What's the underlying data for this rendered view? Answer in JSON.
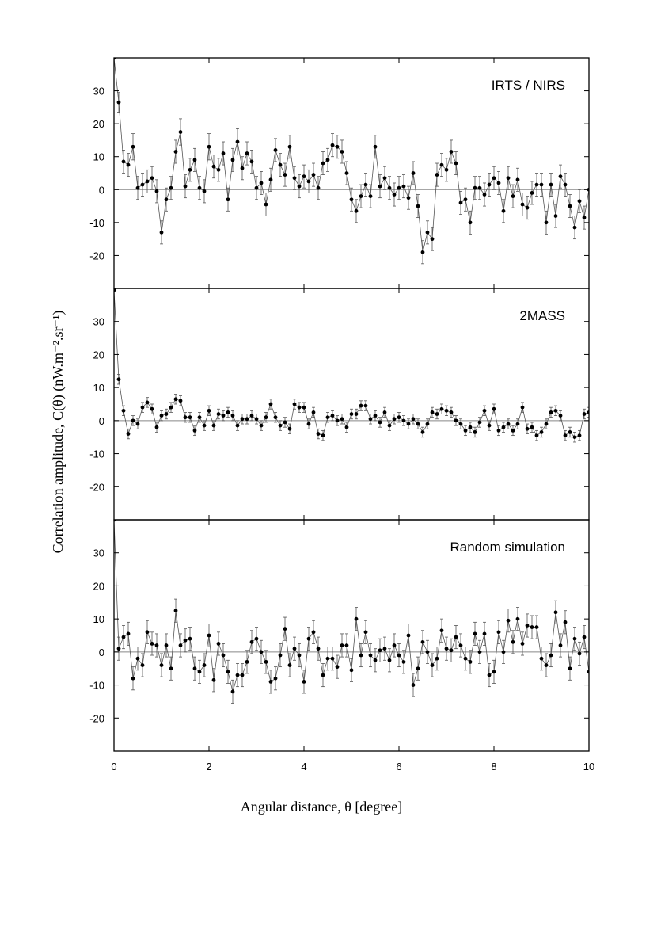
{
  "figure": {
    "ylabel": "Correlation amplitude, C(θ)  (nW.m⁻².sr⁻¹)",
    "xlabel": "Angular distance, θ  [degree]"
  },
  "chart_data": [
    {
      "type": "line",
      "title": "IRTS / NIRS",
      "xlim": [
        0,
        10
      ],
      "ylim": [
        -30,
        40
      ],
      "x_ticks": [
        0,
        2,
        4,
        6,
        8,
        10
      ],
      "y_ticks": [
        -20,
        -10,
        0,
        10,
        20,
        30
      ],
      "error_bars": true,
      "zero_line": true,
      "series": [
        {
          "x": [
            0,
            0.1,
            0.2,
            0.3,
            0.4,
            0.5,
            0.6,
            0.7,
            0.8,
            0.9,
            1.0,
            1.1,
            1.2,
            1.3,
            1.4,
            1.5,
            1.6,
            1.7,
            1.8,
            1.9,
            2.0,
            2.1,
            2.2,
            2.3,
            2.4,
            2.5,
            2.6,
            2.7,
            2.8,
            2.9,
            3.0,
            3.1,
            3.2,
            3.3,
            3.4,
            3.5,
            3.6,
            3.7,
            3.8,
            3.9,
            4.0,
            4.1,
            4.2,
            4.3,
            4.4,
            4.5,
            4.6,
            4.7,
            4.8,
            4.9,
            5.0,
            5.1,
            5.2,
            5.3,
            5.4,
            5.5,
            5.6,
            5.7,
            5.8,
            5.9,
            6.0,
            6.1,
            6.2,
            6.3,
            6.4,
            6.5,
            6.6,
            6.7,
            6.8,
            6.9,
            7.0,
            7.1,
            7.2,
            7.3,
            7.4,
            7.5,
            7.6,
            7.7,
            7.8,
            7.9,
            8.0,
            8.1,
            8.2,
            8.3,
            8.4,
            8.5,
            8.6,
            8.7,
            8.8,
            8.9,
            9.0,
            9.1,
            9.2,
            9.3,
            9.4,
            9.5,
            9.6,
            9.7,
            9.8,
            9.9,
            10.0
          ],
          "y": [
            40,
            26.5,
            8.5,
            7.5,
            13,
            0.5,
            1.5,
            2.5,
            3.5,
            -0.5,
            -13,
            -3,
            0.5,
            11.5,
            17.5,
            1,
            6,
            9,
            0.5,
            -0.5,
            13,
            7,
            6,
            11,
            -3,
            9,
            14.5,
            6.5,
            11,
            8.5,
            0.5,
            2,
            -4.5,
            3,
            12,
            7.5,
            4.5,
            13,
            3.5,
            1,
            4,
            2.5,
            4.5,
            0.5,
            8,
            9,
            13.5,
            13,
            11.5,
            5,
            -3,
            -6.5,
            -2,
            1.5,
            -2,
            13,
            1,
            3.5,
            0.5,
            -1.5,
            0.5,
            1,
            -2.5,
            5,
            -5,
            -19,
            -13,
            -15,
            4.5,
            7.5,
            6,
            11.5,
            8,
            -4,
            -3,
            -10,
            0.5,
            0.5,
            -1.5,
            1.5,
            3.5,
            2,
            -6.5,
            3.5,
            -2,
            3,
            -4.5,
            -5.5,
            -1,
            1.5,
            1.5,
            -10,
            1.5,
            -8,
            4,
            1.5,
            -5,
            -11.5,
            -3.5,
            -8.5,
            0
          ],
          "err": [
            0,
            3,
            3.5,
            3.5,
            4,
            3.5,
            3.5,
            3.5,
            3.5,
            3.5,
            3.5,
            3.5,
            3.5,
            3.5,
            4,
            3.5,
            3.5,
            3.5,
            3.5,
            3.5,
            4,
            3.5,
            3.5,
            3.5,
            3.5,
            3.5,
            4,
            3.5,
            3.5,
            3.5,
            3.5,
            3.5,
            3.5,
            3.5,
            3.5,
            3.5,
            3.5,
            3.5,
            3.5,
            3.5,
            3.5,
            3.5,
            3.5,
            3.5,
            3.5,
            3.5,
            3.5,
            3.5,
            3.5,
            3.5,
            3.5,
            3.5,
            3.5,
            3.5,
            3.5,
            3.5,
            3.5,
            3.5,
            3.5,
            3.5,
            3.5,
            3.5,
            3.5,
            3.5,
            3.5,
            3.5,
            3.5,
            3.5,
            3.5,
            3.5,
            3.5,
            3.5,
            3.5,
            3.5,
            3.5,
            3.5,
            3.5,
            3.5,
            3.5,
            3.5,
            3.5,
            3.5,
            3.5,
            3.5,
            3.5,
            3.5,
            3.5,
            3.5,
            3.5,
            3.5,
            3.5,
            3.5,
            3.5,
            3.5,
            3.5,
            3.5,
            3.5,
            3.5,
            3.5,
            3.5,
            0
          ]
        }
      ]
    },
    {
      "type": "line",
      "title": "2MASS",
      "xlim": [
        0,
        10
      ],
      "ylim": [
        -30,
        40
      ],
      "x_ticks": [
        0,
        2,
        4,
        6,
        8,
        10
      ],
      "y_ticks": [
        -20,
        -10,
        0,
        10,
        20,
        30
      ],
      "error_bars": true,
      "zero_line": true,
      "series": [
        {
          "x": [
            0,
            0.1,
            0.2,
            0.3,
            0.4,
            0.5,
            0.6,
            0.7,
            0.8,
            0.9,
            1.0,
            1.1,
            1.2,
            1.3,
            1.4,
            1.5,
            1.6,
            1.7,
            1.8,
            1.9,
            2.0,
            2.1,
            2.2,
            2.3,
            2.4,
            2.5,
            2.6,
            2.7,
            2.8,
            2.9,
            3.0,
            3.1,
            3.2,
            3.3,
            3.4,
            3.5,
            3.6,
            3.7,
            3.8,
            3.9,
            4.0,
            4.1,
            4.2,
            4.3,
            4.4,
            4.5,
            4.6,
            4.7,
            4.8,
            4.9,
            5.0,
            5.1,
            5.2,
            5.3,
            5.4,
            5.5,
            5.6,
            5.7,
            5.8,
            5.9,
            6.0,
            6.1,
            6.2,
            6.3,
            6.4,
            6.5,
            6.6,
            6.7,
            6.8,
            6.9,
            7.0,
            7.1,
            7.2,
            7.3,
            7.4,
            7.5,
            7.6,
            7.7,
            7.8,
            7.9,
            8.0,
            8.1,
            8.2,
            8.3,
            8.4,
            8.5,
            8.6,
            8.7,
            8.8,
            8.9,
            9.0,
            9.1,
            9.2,
            9.3,
            9.4,
            9.5,
            9.6,
            9.7,
            9.8,
            9.9,
            10.0
          ],
          "y": [
            39.5,
            12.5,
            3,
            -4,
            0,
            -1,
            4,
            5.5,
            3.5,
            -2,
            1.5,
            2,
            4,
            6.5,
            6,
            1,
            1,
            -3,
            1,
            -1.5,
            3,
            -1.5,
            2,
            1.5,
            2.5,
            1.5,
            -1.5,
            0.5,
            0.5,
            1.5,
            0.5,
            -1.5,
            1,
            5,
            1,
            -1.5,
            -0.5,
            -2.5,
            5,
            4,
            4,
            -1,
            2.5,
            -4,
            -4.5,
            1,
            1.5,
            0,
            0.5,
            -2,
            2,
            2,
            4.5,
            4.5,
            0.5,
            1.5,
            -0.5,
            2.5,
            -1.5,
            0.5,
            1,
            0,
            -1,
            0.5,
            -1,
            -3.5,
            -1,
            2.5,
            2,
            3.5,
            3,
            2.5,
            0,
            -1,
            -3,
            -2,
            -3.5,
            -0.5,
            3,
            -1.5,
            3.5,
            -3,
            -2,
            -1,
            -3,
            -1,
            4,
            -2.5,
            -2,
            -4.5,
            -3.5,
            -1,
            2.5,
            3,
            1.5,
            -4.5,
            -3.5,
            -5,
            -4.5,
            2,
            2.5
          ],
          "err": [
            0,
            1.5,
            1.5,
            1.5,
            1.5,
            1.5,
            1.5,
            1.5,
            1.5,
            1.5,
            1.5,
            1.5,
            1.5,
            1.5,
            1.5,
            1.5,
            1.5,
            1.5,
            1.5,
            1.5,
            1.5,
            1.5,
            1.5,
            1.5,
            1.5,
            1.5,
            1.5,
            1.5,
            1.5,
            1.5,
            1.5,
            1.5,
            1.5,
            1.5,
            1.5,
            1.5,
            1.5,
            1.5,
            1.5,
            1.5,
            1.5,
            1.5,
            1.5,
            1.5,
            1.5,
            1.5,
            1.5,
            1.5,
            1.5,
            1.5,
            1.5,
            1.5,
            1.5,
            1.5,
            1.5,
            1.5,
            1.5,
            1.5,
            1.5,
            1.5,
            1.5,
            1.5,
            1.5,
            1.5,
            1.5,
            1.5,
            1.5,
            1.5,
            1.5,
            1.5,
            1.5,
            1.5,
            1.5,
            1.5,
            1.5,
            1.5,
            1.5,
            1.5,
            1.5,
            1.5,
            1.5,
            1.5,
            1.5,
            1.5,
            1.5,
            1.5,
            1.5,
            1.5,
            1.5,
            1.5,
            1.5,
            1.5,
            1.5,
            1.5,
            1.5,
            1.5,
            1.5,
            1.5,
            1.5,
            1.5,
            1.5
          ]
        }
      ]
    },
    {
      "type": "line",
      "title": "Random simulation",
      "xlim": [
        0,
        10
      ],
      "ylim": [
        -30,
        40
      ],
      "x_ticks": [
        0,
        2,
        4,
        6,
        8,
        10
      ],
      "y_ticks": [
        -20,
        -10,
        0,
        10,
        20,
        30
      ],
      "error_bars": true,
      "zero_line": true,
      "series": [
        {
          "x": [
            0,
            0.1,
            0.2,
            0.3,
            0.4,
            0.5,
            0.6,
            0.7,
            0.8,
            0.9,
            1.0,
            1.1,
            1.2,
            1.3,
            1.4,
            1.5,
            1.6,
            1.7,
            1.8,
            1.9,
            2.0,
            2.1,
            2.2,
            2.3,
            2.4,
            2.5,
            2.6,
            2.7,
            2.8,
            2.9,
            3.0,
            3.1,
            3.2,
            3.3,
            3.4,
            3.5,
            3.6,
            3.7,
            3.8,
            3.9,
            4.0,
            4.1,
            4.2,
            4.3,
            4.4,
            4.5,
            4.6,
            4.7,
            4.8,
            4.9,
            5.0,
            5.1,
            5.2,
            5.3,
            5.4,
            5.5,
            5.6,
            5.7,
            5.8,
            5.9,
            6.0,
            6.1,
            6.2,
            6.3,
            6.4,
            6.5,
            6.6,
            6.7,
            6.8,
            6.9,
            7.0,
            7.1,
            7.2,
            7.3,
            7.4,
            7.5,
            7.6,
            7.7,
            7.8,
            7.9,
            8.0,
            8.1,
            8.2,
            8.3,
            8.4,
            8.5,
            8.6,
            8.7,
            8.8,
            8.9,
            9.0,
            9.1,
            9.2,
            9.3,
            9.4,
            9.5,
            9.6,
            9.7,
            9.8,
            9.9,
            10.0
          ],
          "y": [
            40,
            1,
            4.5,
            5.5,
            -8,
            -2,
            -4,
            6,
            2.5,
            2,
            -4,
            2,
            -5,
            12.5,
            2,
            3.5,
            4,
            -5,
            -6,
            -4,
            5,
            -8.5,
            2.5,
            -1,
            -6,
            -12,
            -7,
            -7,
            -3,
            3,
            4,
            0,
            -3,
            -9,
            -8,
            -1,
            7,
            -4,
            1,
            -1,
            -9,
            4,
            6,
            1,
            -7,
            -2,
            -2,
            -4.5,
            2,
            2,
            -5.5,
            10,
            -1,
            6,
            -1,
            -2.5,
            0.5,
            1,
            -2.5,
            2,
            -1,
            -3,
            5,
            -10,
            -5,
            3,
            0,
            -4,
            -2,
            6.5,
            1,
            0.5,
            4.5,
            2,
            -2,
            -3,
            5.5,
            0,
            5.5,
            -7,
            -6,
            6,
            0,
            9.5,
            3,
            10,
            2.5,
            8,
            7.5,
            7.5,
            -2,
            -4,
            -1,
            12,
            2,
            9,
            -5,
            4,
            -0.5,
            4.5,
            -6
          ],
          "err": [
            0,
            3.5,
            3.5,
            3.5,
            3.5,
            3.5,
            3.5,
            3.5,
            3.5,
            3.5,
            3.5,
            3.5,
            3.5,
            3.5,
            3.5,
            3.5,
            3.5,
            3.5,
            3.5,
            3.5,
            3.5,
            3.5,
            3.5,
            3.5,
            3.5,
            3.5,
            3.5,
            3.5,
            3.5,
            3.5,
            3.5,
            3.5,
            3.5,
            3.5,
            3.5,
            3.5,
            3.5,
            3.5,
            3.5,
            3.5,
            3.5,
            3.5,
            3.5,
            3.5,
            3.5,
            3.5,
            3.5,
            3.5,
            3.5,
            3.5,
            3.5,
            3.5,
            3.5,
            3.5,
            3.5,
            3.5,
            3.5,
            3.5,
            3.5,
            3.5,
            3.5,
            3.5,
            3.5,
            3.5,
            3.5,
            3.5,
            3.5,
            3.5,
            3.5,
            3.5,
            3.5,
            3.5,
            3.5,
            3.5,
            3.5,
            3.5,
            3.5,
            3.5,
            3.5,
            3.5,
            3.5,
            3.5,
            3.5,
            3.5,
            3.5,
            3.5,
            3.5,
            3.5,
            3.5,
            3.5,
            3.5,
            3.5,
            3.5,
            3.5,
            3.5,
            3.5,
            3.5,
            3.5,
            3.5,
            3.5,
            0
          ]
        }
      ]
    }
  ]
}
